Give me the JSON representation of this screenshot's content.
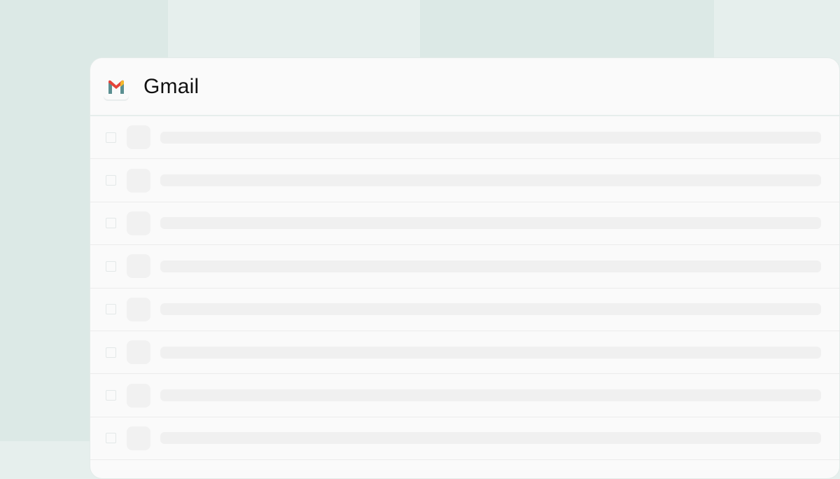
{
  "app": {
    "title": "Gmail",
    "logo_icon": "gmail-logo-icon"
  },
  "inbox": {
    "loading_placeholder_rows": 8
  },
  "colors": {
    "background": "#e6efed",
    "card": "#fafafa",
    "placeholder": "#f0f0f0",
    "logo_red": "#e5443a",
    "logo_teal": "#5b8f91",
    "logo_yellow": "#f4b82c"
  }
}
